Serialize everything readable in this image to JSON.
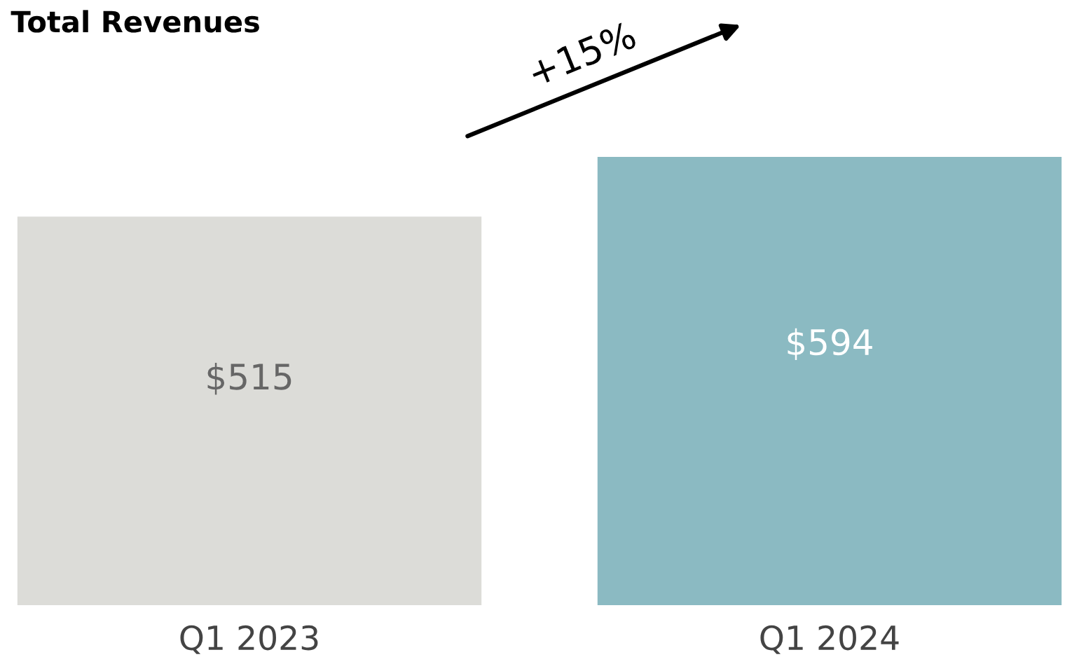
{
  "chart_data": {
    "type": "bar",
    "title": "Total Revenues",
    "categories": [
      "Q1 2023",
      "Q1 2024"
    ],
    "values": [
      515,
      594
    ],
    "colors": [
      "#dcdcd8",
      "#8bbac2"
    ],
    "value_labels": [
      "$515",
      "$594"
    ],
    "annotations": [
      "+15%"
    ],
    "grid": false,
    "legend": false
  }
}
